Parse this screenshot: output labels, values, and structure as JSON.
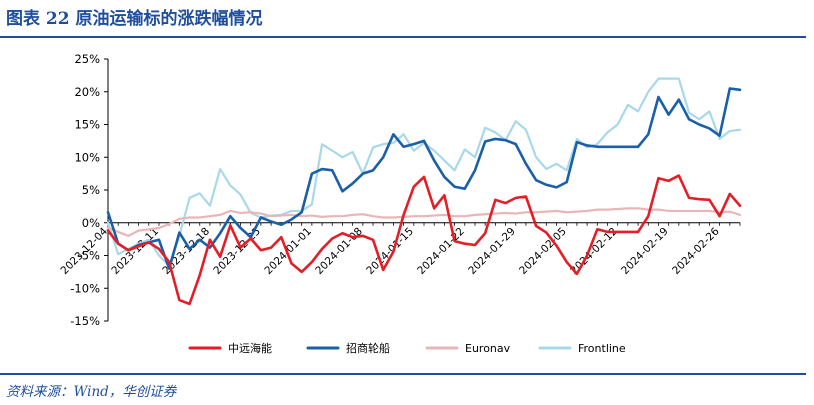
{
  "figure": {
    "title": "图表 22  原油运输标的涨跌幅情况",
    "source": "资料来源：Wind，华创证券"
  },
  "chart_data": {
    "type": "line",
    "title": "原油运输标的涨跌幅情况",
    "xlabel": "",
    "ylabel": "",
    "ylim": [
      -15,
      25
    ],
    "yticks": [
      25,
      20,
      15,
      10,
      5,
      0,
      -5,
      -10,
      -15
    ],
    "ytick_labels": [
      "25%",
      "20%",
      "15%",
      "10%",
      "5%",
      "0%",
      "-5%",
      "-10%",
      "-15%"
    ],
    "x_index_range": [
      0,
      62
    ],
    "xtick_labels": [
      "2023-12-04",
      "2023-12-11",
      "2023-12-18",
      "2023-12-25",
      "2024-01-01",
      "2024-01-08",
      "2024-01-15",
      "2024-01-22",
      "2024-01-29",
      "2024-02-05",
      "2024-02-12",
      "2024-02-19",
      "2024-02-26"
    ],
    "xtick_index": [
      0,
      5,
      10,
      15,
      20,
      25,
      30,
      35,
      40,
      45,
      50,
      55,
      60
    ],
    "grid": false,
    "legend_position": "bottom",
    "series": [
      {
        "name": "中远海能",
        "color": "#e41e26",
        "values": [
          -1.2,
          -3.2,
          -4.2,
          -3.6,
          -3.0,
          -4.0,
          -6.0,
          -11.8,
          -12.4,
          -8.0,
          -2.6,
          -5.2,
          -0.4,
          -3.8,
          -2.4,
          -4.2,
          -3.8,
          -2.2,
          -6.2,
          -7.5,
          -6.0,
          -4.0,
          -2.4,
          -1.6,
          -2.2,
          -2.0,
          -2.6,
          -7.2,
          -4.4,
          1.2,
          5.5,
          7.0,
          2.2,
          4.2,
          -2.8,
          -3.2,
          -3.4,
          -1.6,
          3.5,
          3.0,
          3.8,
          4.0,
          -0.5,
          -1.5,
          -3.5,
          -6.0,
          -7.8,
          -5.0,
          -1.0,
          -1.4,
          -1.4,
          -1.4,
          -1.4,
          1.0,
          6.8,
          6.4,
          7.2,
          3.8,
          3.6,
          3.5,
          1.0,
          4.4,
          2.6
        ]
      },
      {
        "name": "招商轮船",
        "color": "#1a5fa8",
        "values": [
          1.6,
          -3.2,
          -4.2,
          -3.4,
          -3.0,
          -2.6,
          -7.0,
          -1.5,
          -4.0,
          -2.6,
          -3.8,
          -1.6,
          1.0,
          -0.8,
          -2.2,
          0.8,
          0.2,
          -0.3,
          0.5,
          1.6,
          7.5,
          8.2,
          8.0,
          4.8,
          6.0,
          7.5,
          8.0,
          10.0,
          13.5,
          11.6,
          12.0,
          12.5,
          9.5,
          7.0,
          5.5,
          5.2,
          8.0,
          12.4,
          12.8,
          12.6,
          12.0,
          9.0,
          6.5,
          5.8,
          5.4,
          6.2,
          12.3,
          11.8,
          11.6,
          11.6,
          11.6,
          11.6,
          11.6,
          13.5,
          19.2,
          16.5,
          18.8,
          15.8,
          15.0,
          14.4,
          13.3,
          20.5,
          20.3
        ]
      },
      {
        "name": "Euronav",
        "color": "#e9b6b8",
        "values": [
          -0.8,
          -1.4,
          -2.0,
          -1.2,
          -1.0,
          -0.8,
          -0.2,
          0.6,
          0.8,
          0.8,
          1.0,
          1.2,
          1.8,
          1.5,
          1.6,
          1.4,
          1.0,
          1.1,
          1.2,
          1.0,
          1.1,
          0.9,
          1.0,
          1.0,
          1.2,
          1.3,
          1.0,
          0.8,
          0.8,
          0.9,
          1.0,
          1.0,
          1.1,
          1.2,
          1.0,
          1.0,
          1.2,
          1.3,
          1.4,
          1.5,
          1.4,
          1.6,
          1.6,
          1.7,
          1.8,
          1.6,
          1.7,
          1.8,
          2.0,
          2.0,
          2.1,
          2.2,
          2.2,
          2.0,
          2.0,
          1.8,
          1.8,
          1.8,
          1.8,
          1.8,
          1.6,
          1.7,
          1.2
        ]
      },
      {
        "name": "Frontline",
        "color": "#a8d8ea",
        "values": [
          0.0,
          -4.8,
          -4.0,
          -3.2,
          -2.6,
          -5.0,
          -6.6,
          -2.0,
          3.8,
          4.5,
          2.6,
          8.2,
          5.7,
          4.3,
          1.5,
          0.8,
          1.1,
          1.2,
          1.8,
          1.8,
          2.8,
          12.0,
          11.0,
          10.0,
          10.8,
          7.5,
          11.5,
          12.0,
          12.2,
          13.5,
          11.0,
          12.2,
          11.0,
          9.5,
          8.0,
          11.2,
          10.0,
          14.5,
          13.8,
          12.6,
          15.5,
          14.2,
          10.0,
          8.2,
          9.0,
          8.0,
          12.8,
          11.5,
          12.0,
          13.8,
          15.0,
          18.0,
          17.0,
          20.0,
          22.0,
          22.0,
          22.0,
          16.8,
          15.8,
          17.0,
          12.8,
          14.0,
          14.2
        ]
      }
    ]
  }
}
